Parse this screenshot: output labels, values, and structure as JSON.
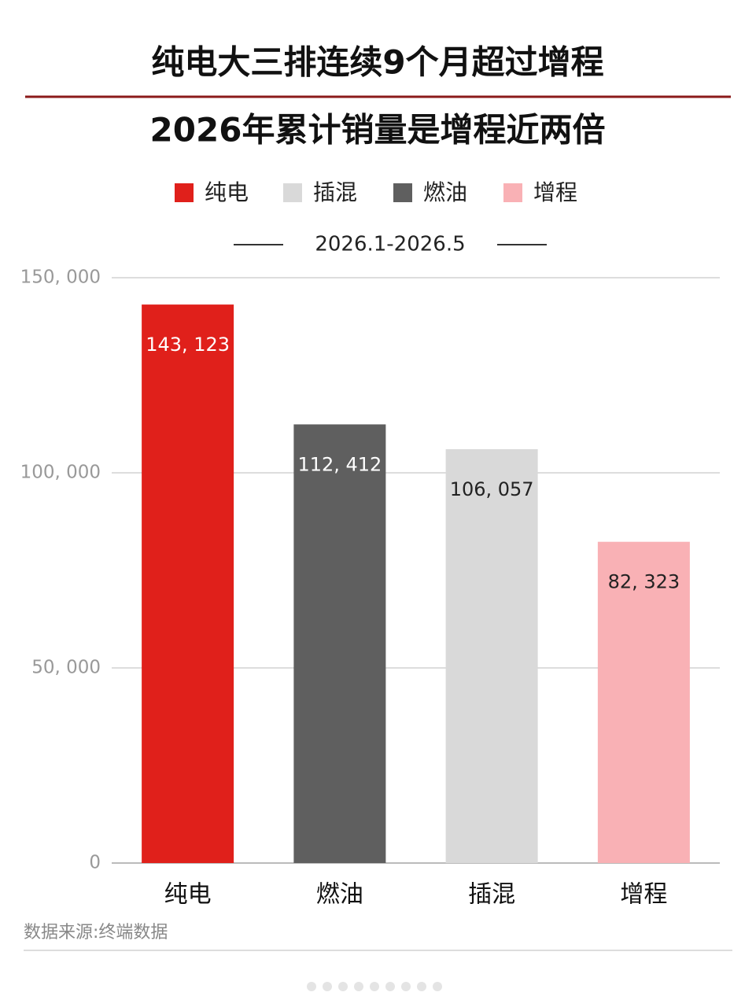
{
  "chart_data": {
    "type": "bar",
    "title": "纯电大三排连续9个月超过增程",
    "subtitle": "2026年累计销量是增程近两倍",
    "period": "2026.1-2026.5",
    "legend": {
      "items": [
        "纯电",
        "插混",
        "燃油",
        "增程"
      ],
      "colors": [
        "#e0201b",
        "#d9d9d9",
        "#5f5f5f",
        "#f9b1b5"
      ]
    },
    "categories": [
      "纯电",
      "燃油",
      "插混",
      "增程"
    ],
    "values": [
      143123,
      112412,
      106057,
      82323
    ],
    "value_labels": [
      "143, 123",
      "112, 412",
      "106, 057",
      "82, 323"
    ],
    "colors": [
      "#e0201b",
      "#5f5f5f",
      "#d9d9d9",
      "#f9b1b5"
    ],
    "label_colors": [
      "#ffffff",
      "#ffffff",
      "#222222",
      "#222222"
    ],
    "ylim": [
      0,
      150000
    ],
    "yticks": [
      0,
      {
        "value": 50000,
        "label": "50, 000"
      },
      {
        "value": 100000,
        "label": "100, 000"
      },
      {
        "value": 150000,
        "label": "150, 000"
      }
    ],
    "grid": true,
    "source": "数据来源:终端数据"
  }
}
